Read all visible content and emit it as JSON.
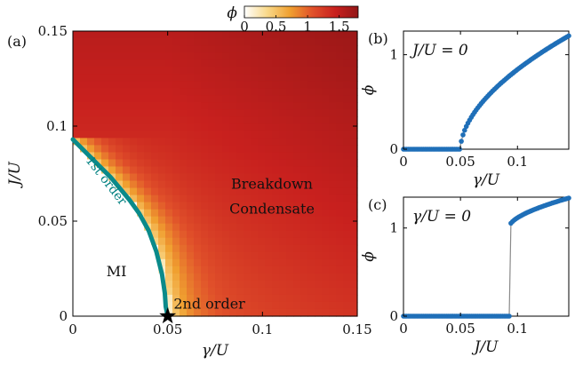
{
  "colors": {
    "phase_boundary": "#0a8a8a",
    "marker": "#1f6fb8",
    "grey_line": "#8a8a8a",
    "colormap": [
      "#ffffff",
      "#f9d98a",
      "#f0a030",
      "#e0502a",
      "#c8201e",
      "#921616"
    ]
  },
  "chart_data": [
    {
      "id": "a",
      "type": "heatmap",
      "panel_label": "(a)",
      "xlabel": "γ/U",
      "ylabel": "J/U",
      "xlim": [
        0,
        0.15
      ],
      "ylim": [
        0,
        0.15
      ],
      "xticks": [
        0,
        0.05,
        0.1,
        0.15
      ],
      "xtick_labels": [
        "0",
        "0.05",
        "0.1",
        "0.15"
      ],
      "yticks": [
        0,
        0.05,
        0.1,
        0.15
      ],
      "ytick_labels": [
        "0",
        "0.05",
        "0.1",
        "0.15"
      ],
      "colorbar": {
        "label": "ϕ",
        "range": [
          0,
          1.8
        ],
        "ticks": [
          0,
          0.5,
          1,
          1.5
        ],
        "tick_labels": [
          "0",
          "0.5",
          "1",
          "1.5"
        ]
      },
      "boundary": [
        {
          "x": 0.0,
          "y": 0.093
        },
        {
          "x": 0.01,
          "y": 0.083
        },
        {
          "x": 0.02,
          "y": 0.073
        },
        {
          "x": 0.03,
          "y": 0.061
        },
        {
          "x": 0.035,
          "y": 0.054
        },
        {
          "x": 0.04,
          "y": 0.045
        },
        {
          "x": 0.044,
          "y": 0.034
        },
        {
          "x": 0.047,
          "y": 0.022
        },
        {
          "x": 0.0485,
          "y": 0.012
        },
        {
          "x": 0.049,
          "y": 0.005
        },
        {
          "x": 0.05,
          "y": 0.0
        }
      ],
      "critical_point": {
        "x": 0.05,
        "y": 0.0
      },
      "annotations": [
        {
          "text": "Breakdown",
          "x": 0.105,
          "y": 0.067
        },
        {
          "text": "Condensate",
          "x": 0.105,
          "y": 0.054
        },
        {
          "text": "MI",
          "x": 0.023,
          "y": 0.021
        },
        {
          "text": "2nd order",
          "x": 0.072,
          "y": 0.004
        },
        {
          "text": "1st order",
          "x": 0.016,
          "y": 0.07
        }
      ]
    },
    {
      "id": "b",
      "type": "scatter",
      "panel_label": "(b)",
      "legend": "J/U = 0",
      "xlabel": "γ/U",
      "ylabel": "ϕ",
      "xlim": [
        0,
        0.145
      ],
      "ylim": [
        0,
        1.25
      ],
      "xticks": [
        0,
        0.05,
        0.1
      ],
      "xtick_labels": [
        "0",
        "0.05",
        "0.1"
      ],
      "yticks": [
        0,
        1
      ],
      "ytick_labels": [
        "0",
        "1"
      ],
      "transition_x": 0.05,
      "series": [
        {
          "x_start": 0.0,
          "x_end": 0.145,
          "rule": "phi = 0 for x <= 0.05, then rises steeply to about 1.2 at x = 0.145"
        }
      ]
    },
    {
      "id": "c",
      "type": "scatter",
      "panel_label": "(c)",
      "legend": "γ/U = 0",
      "xlabel": "J/U",
      "ylabel": "ϕ",
      "xlim": [
        0,
        0.145
      ],
      "ylim": [
        0,
        1.35
      ],
      "xticks": [
        0,
        0.05,
        0.1
      ],
      "xtick_labels": [
        "0",
        "0.05",
        "0.1"
      ],
      "yticks": [
        0,
        1
      ],
      "ytick_labels": [
        "0",
        "1"
      ],
      "transition_x": 0.093,
      "jump_to": 1.02,
      "series": [
        {
          "x_start": 0.0,
          "x_end": 0.145,
          "rule": "phi = 0 up to x = 0.093, jumps to 1.02, then rises to about 1.34 at x = 0.145"
        }
      ]
    }
  ]
}
